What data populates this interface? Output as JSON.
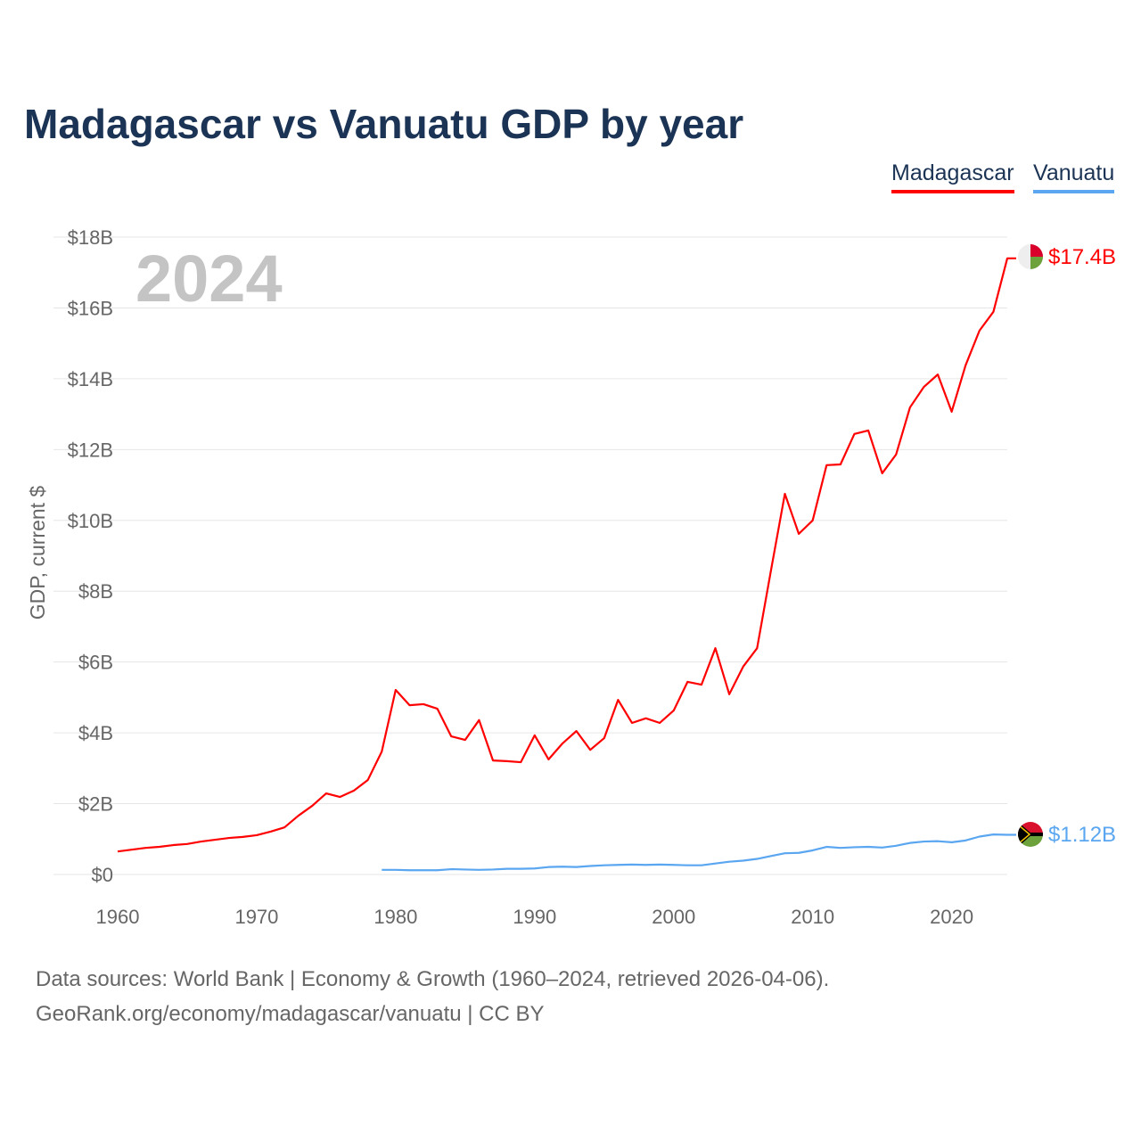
{
  "title": "Madagascar vs Vanuatu GDP by year",
  "year_watermark": "2024",
  "legend": [
    {
      "name": "Madagascar",
      "color": "#ff0000"
    },
    {
      "name": "Vanuatu",
      "color": "#5aa6f0"
    }
  ],
  "end_labels": {
    "madagascar": "$17.4B",
    "vanuatu": "$1.12B"
  },
  "footer": {
    "line1": "Data sources: World Bank | Economy & Growth (1960–2024, retrieved 2026-04-06).",
    "line2": "GeoRank.org/economy/madagascar/vanuatu | CC BY"
  },
  "chart_data": {
    "type": "line",
    "title": "Madagascar vs Vanuatu GDP by year",
    "xlabel": "",
    "ylabel": "GDP, current $",
    "xlim": [
      1960,
      2024
    ],
    "ylim": [
      0,
      18
    ],
    "xticks": [
      1960,
      1970,
      1980,
      1990,
      2000,
      2010,
      2020
    ],
    "yticks": [
      {
        "v": 0,
        "label": "$0"
      },
      {
        "v": 2,
        "label": "$2B"
      },
      {
        "v": 4,
        "label": "$4B"
      },
      {
        "v": 6,
        "label": "$6B"
      },
      {
        "v": 8,
        "label": "$8B"
      },
      {
        "v": 10,
        "label": "$10B"
      },
      {
        "v": 12,
        "label": "$12B"
      },
      {
        "v": 14,
        "label": "$14B"
      },
      {
        "v": 16,
        "label": "$16B"
      },
      {
        "v": 18,
        "label": "$18B"
      }
    ],
    "grid": true,
    "legend_position": "top-right",
    "units": "billion USD",
    "series": [
      {
        "name": "Madagascar",
        "color": "#ff0000",
        "start_year": 1960,
        "values": [
          0.65,
          0.7,
          0.75,
          0.78,
          0.83,
          0.86,
          0.93,
          0.98,
          1.03,
          1.06,
          1.11,
          1.21,
          1.33,
          1.66,
          1.94,
          2.29,
          2.19,
          2.37,
          2.67,
          3.47,
          5.21,
          4.78,
          4.81,
          4.68,
          3.9,
          3.8,
          4.36,
          3.22,
          3.2,
          3.17,
          3.93,
          3.25,
          3.7,
          4.05,
          3.52,
          3.85,
          4.93,
          4.28,
          4.41,
          4.28,
          4.63,
          5.44,
          5.36,
          6.39,
          5.09,
          5.87,
          6.39,
          8.59,
          10.75,
          9.62,
          10.0,
          11.56,
          11.58,
          12.44,
          12.54,
          11.33,
          11.86,
          13.19,
          13.77,
          14.12,
          13.07,
          14.38,
          15.36,
          15.89,
          17.4
        ]
      },
      {
        "name": "Vanuatu",
        "color": "#5aa6f0",
        "start_year": 1979,
        "values": [
          0.13,
          0.13,
          0.12,
          0.12,
          0.12,
          0.15,
          0.14,
          0.13,
          0.14,
          0.16,
          0.16,
          0.17,
          0.21,
          0.22,
          0.21,
          0.24,
          0.26,
          0.27,
          0.28,
          0.27,
          0.28,
          0.27,
          0.26,
          0.26,
          0.31,
          0.36,
          0.39,
          0.44,
          0.52,
          0.6,
          0.61,
          0.68,
          0.78,
          0.75,
          0.77,
          0.78,
          0.76,
          0.81,
          0.89,
          0.93,
          0.94,
          0.91,
          0.96,
          1.07,
          1.13,
          1.12
        ]
      }
    ]
  }
}
